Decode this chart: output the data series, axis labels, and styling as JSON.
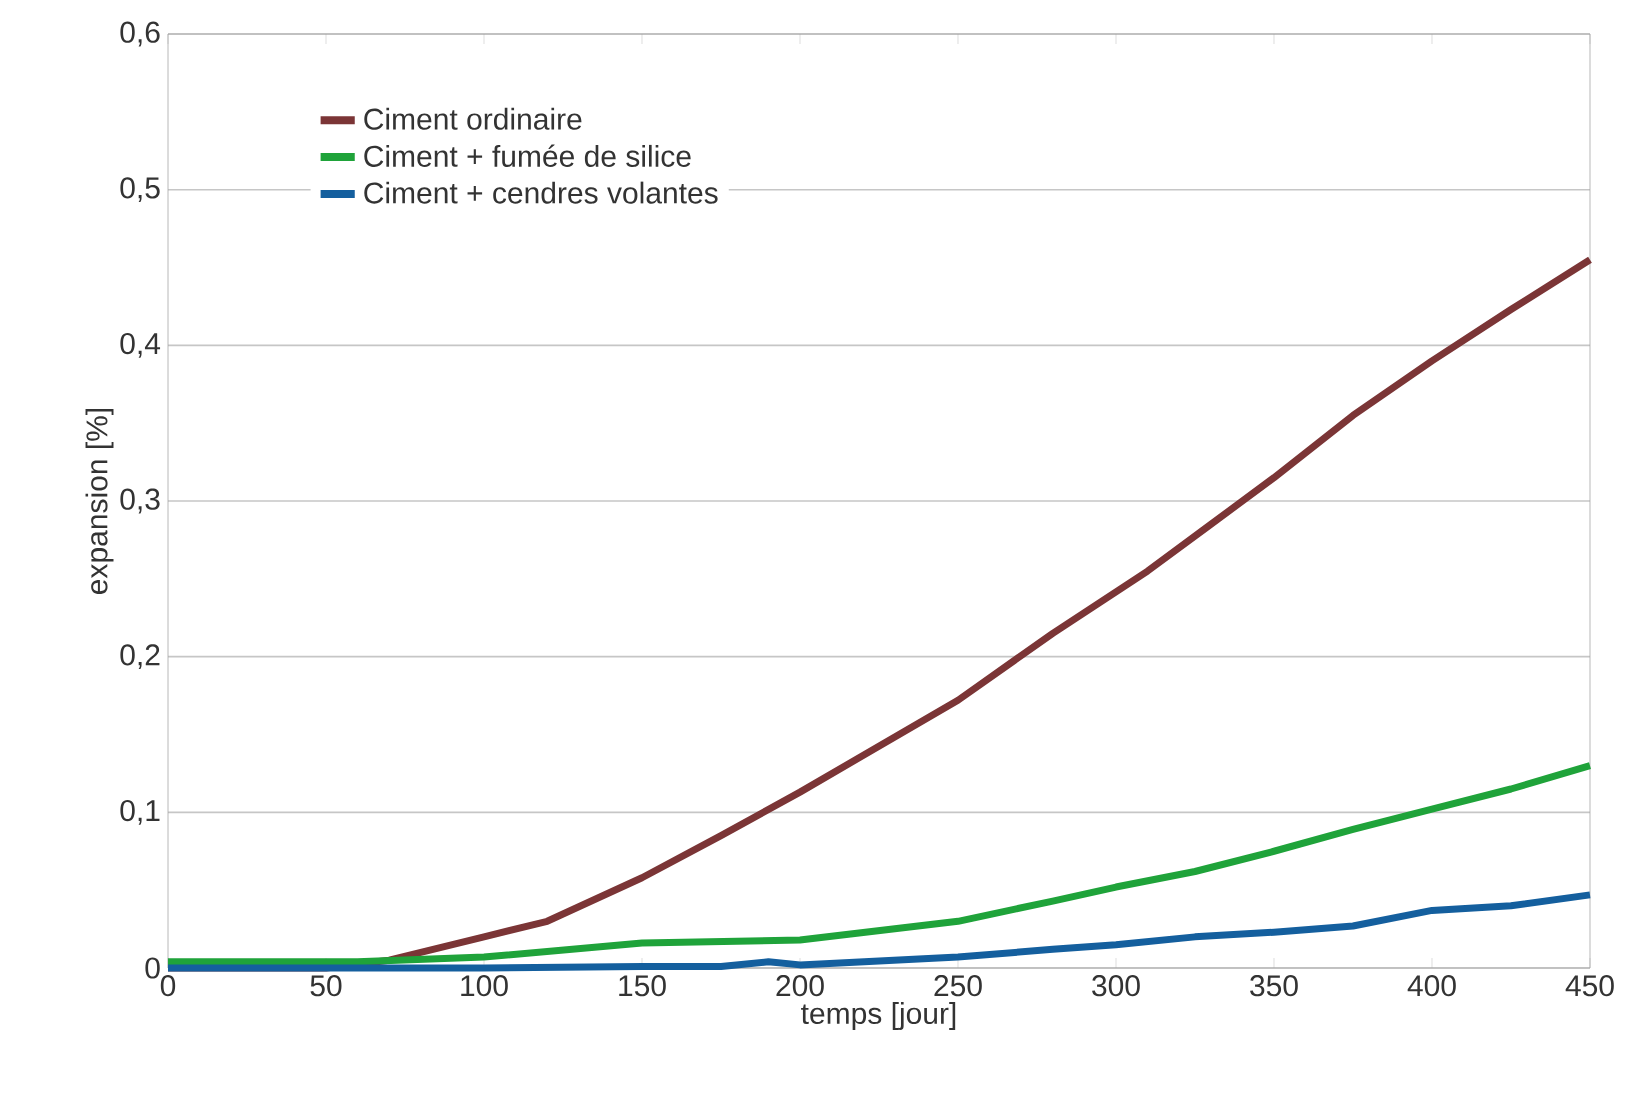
{
  "chart_data": {
    "type": "line",
    "xlabel": "temps [jour]",
    "ylabel": "expansion [%]",
    "xlim": [
      0,
      450
    ],
    "ylim": [
      0,
      0.6
    ],
    "xticks": [
      0,
      50,
      100,
      150,
      200,
      250,
      300,
      350,
      400,
      450
    ],
    "yticks": [
      0,
      {
        "value": 0.1,
        "label": "0,1"
      },
      {
        "value": 0.2,
        "label": "0,2"
      },
      {
        "value": 0.3,
        "label": "0,3"
      },
      {
        "value": 0.4,
        "label": "0,4"
      },
      {
        "value": 0.5,
        "label": "0,5"
      },
      {
        "value": 0.6,
        "label": "0,6"
      }
    ],
    "grid": "y",
    "legend": "top left",
    "marker": "none",
    "line_style": "solid",
    "series": [
      {
        "name": "Ciment ordinaire",
        "color": "#7b3536",
        "x": [
          0,
          50,
          70,
          100,
          120,
          150,
          175,
          200,
          250,
          280,
          310,
          330,
          350,
          375,
          400,
          425,
          450
        ],
        "values": [
          0,
          0,
          0.005,
          0.02,
          0.03,
          0.058,
          0.085,
          0.113,
          0.172,
          0.215,
          0.255,
          0.285,
          0.315,
          0.355,
          0.39,
          0.423,
          0.455
        ]
      },
      {
        "name": "Ciment + fumée de silice",
        "color": "#1fa33a",
        "x": [
          0,
          60,
          100,
          150,
          200,
          250,
          280,
          300,
          325,
          350,
          375,
          400,
          425,
          450
        ],
        "values": [
          0.004,
          0.004,
          0.007,
          0.016,
          0.018,
          0.03,
          0.043,
          0.052,
          0.062,
          0.075,
          0.089,
          0.102,
          0.115,
          0.13
        ]
      },
      {
        "name": "Ciment + cendres volantes",
        "color": "#145f9e",
        "x": [
          0,
          100,
          150,
          175,
          190,
          200,
          250,
          280,
          300,
          325,
          350,
          375,
          400,
          425,
          450
        ],
        "values": [
          0,
          0,
          0.001,
          0.001,
          0.004,
          0.002,
          0.007,
          0.012,
          0.015,
          0.02,
          0.023,
          0.027,
          0.037,
          0.04,
          0.047
        ]
      }
    ]
  }
}
